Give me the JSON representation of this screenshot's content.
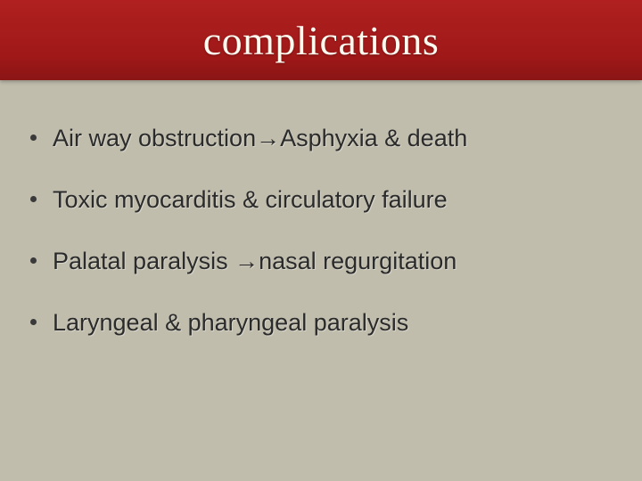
{
  "header": {
    "title": "complications",
    "background_color": "#a01b1b",
    "title_color": "#fdfaf0",
    "title_fontsize": 46,
    "title_fontfamily": "Times New Roman"
  },
  "body": {
    "background_color": "#c0bdad",
    "text_color": "#2b2b2b",
    "bullet_fontsize": 27
  },
  "bullets": [
    {
      "text": "Air way obstruction→Asphyxia & death"
    },
    {
      "text": "Toxic myocarditis & circulatory failure"
    },
    {
      "text": "Palatal paralysis →nasal regurgitation"
    },
    {
      "text": "Laryngeal & pharyngeal paralysis"
    }
  ]
}
